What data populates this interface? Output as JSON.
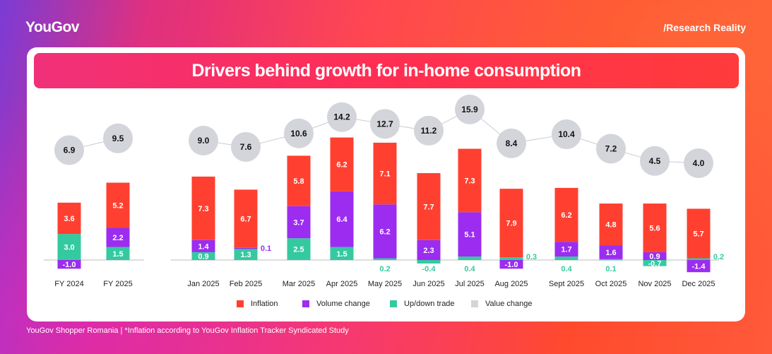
{
  "brand": {
    "logo": "YouGov",
    "tagline": "/Research Reality"
  },
  "title": "Drivers behind growth for in-home consumption",
  "footer": "YouGov Shopper Romania | *Inflation according to YouGov Inflation Tracker Syndicated Study",
  "colors": {
    "inflation": "#ff4030",
    "volume": "#9b2cf0",
    "trade": "#35c9a0",
    "value": "#d3d5db"
  },
  "chart_data": {
    "type": "bar",
    "stacked": true,
    "groups": [
      {
        "name": "annual",
        "categories": [
          "FY 2024",
          "FY 2025"
        ]
      },
      {
        "name": "monthly",
        "categories": [
          "Jan 2025",
          "Feb 2025",
          "Mar 2025",
          "Apr 2025",
          "May 2025",
          "Jun 2025",
          "Jul 2025",
          "Aug 2025",
          "Sept 2025",
          "Oct 2025",
          "Nov 2025",
          "Dec 2025"
        ]
      }
    ],
    "categories": [
      "FY 2024",
      "FY 2025",
      "Jan 2025",
      "Feb 2025",
      "Mar 2025",
      "Apr 2025",
      "May 2025",
      "Jun 2025",
      "Jul 2025",
      "Aug 2025",
      "Sept 2025",
      "Oct 2025",
      "Nov 2025",
      "Dec 2025"
    ],
    "series": [
      {
        "name": "Inflation",
        "key": "inflation",
        "values": [
          3.6,
          5.2,
          7.3,
          6.7,
          5.8,
          6.2,
          7.1,
          7.7,
          7.3,
          7.9,
          6.2,
          4.8,
          5.6,
          5.7
        ]
      },
      {
        "name": "Volume change",
        "key": "volume",
        "values": [
          -1.0,
          2.2,
          1.4,
          0.1,
          3.7,
          6.4,
          6.2,
          2.3,
          5.1,
          -1.0,
          1.7,
          1.6,
          0.9,
          -1.4
        ]
      },
      {
        "name": "Up/down trade",
        "key": "trade",
        "values": [
          3.0,
          1.5,
          0.9,
          1.3,
          2.5,
          1.5,
          0.2,
          -0.4,
          0.4,
          0.3,
          0.4,
          0.1,
          -0.7,
          0.2
        ]
      },
      {
        "name": "Value change",
        "key": "value",
        "type": "line-bubble",
        "values": [
          6.9,
          9.5,
          9.0,
          7.6,
          10.6,
          14.2,
          12.7,
          11.2,
          15.9,
          8.4,
          10.4,
          7.2,
          4.5,
          4.0
        ]
      }
    ],
    "legend": {
      "position": "bottom",
      "items": [
        "Inflation",
        "Volume change",
        "Up/down trade",
        "Value change"
      ]
    },
    "grid": false
  }
}
